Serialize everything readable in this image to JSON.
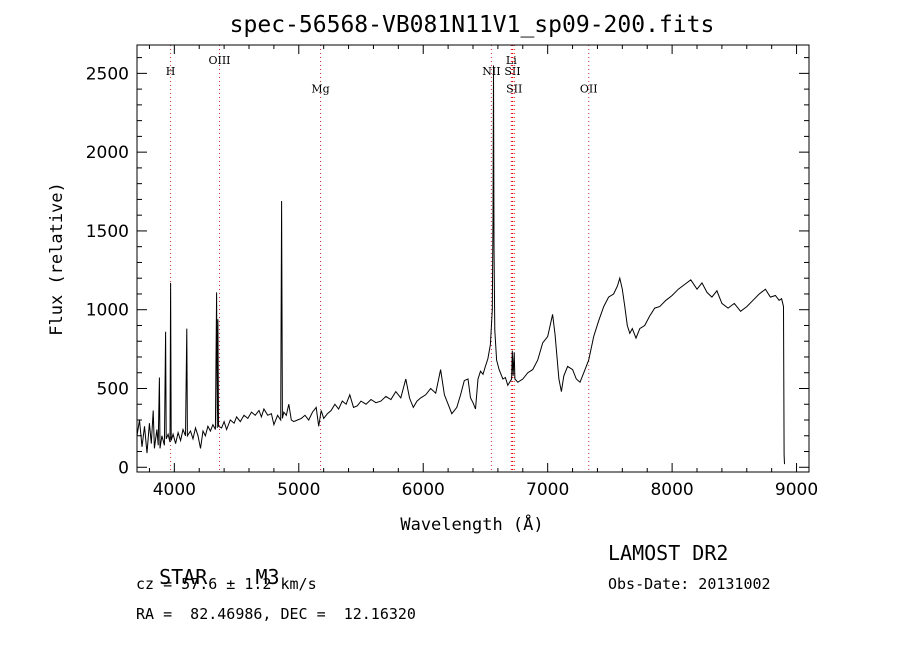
{
  "chart_data": {
    "type": "line",
    "title": "spec-56568-VB081N11V1_sp09-200.fits",
    "xlabel": "Wavelength (Å)",
    "ylabel": "Flux (relative)",
    "xlim": [
      3700,
      9100
    ],
    "ylim": [
      -30,
      2680
    ],
    "xticks": [
      4000,
      5000,
      6000,
      7000,
      8000,
      9000
    ],
    "yticks": [
      0,
      500,
      1000,
      1500,
      2000,
      2500
    ],
    "grid": false,
    "series": [
      {
        "points": [
          [
            3700,
            200
          ],
          [
            3720,
            300
          ],
          [
            3740,
            130
          ],
          [
            3760,
            260
          ],
          [
            3780,
            90
          ],
          [
            3800,
            280
          ],
          [
            3815,
            150
          ],
          [
            3830,
            360
          ],
          [
            3840,
            120
          ],
          [
            3860,
            240
          ],
          [
            3870,
            140
          ],
          [
            3880,
            570
          ],
          [
            3885,
            120
          ],
          [
            3900,
            200
          ],
          [
            3920,
            140
          ],
          [
            3930,
            860
          ],
          [
            3935,
            180
          ],
          [
            3950,
            210
          ],
          [
            3965,
            160
          ],
          [
            3970,
            1170
          ],
          [
            3975,
            170
          ],
          [
            3990,
            210
          ],
          [
            4010,
            150
          ],
          [
            4030,
            220
          ],
          [
            4050,
            170
          ],
          [
            4070,
            240
          ],
          [
            4090,
            200
          ],
          [
            4100,
            880
          ],
          [
            4105,
            200
          ],
          [
            4130,
            230
          ],
          [
            4150,
            180
          ],
          [
            4170,
            250
          ],
          [
            4190,
            200
          ],
          [
            4210,
            120
          ],
          [
            4230,
            230
          ],
          [
            4250,
            200
          ],
          [
            4270,
            260
          ],
          [
            4290,
            230
          ],
          [
            4310,
            270
          ],
          [
            4330,
            240
          ],
          [
            4340,
            1110
          ],
          [
            4345,
            250
          ],
          [
            4350,
            940
          ],
          [
            4355,
            260
          ],
          [
            4380,
            250
          ],
          [
            4400,
            290
          ],
          [
            4420,
            240
          ],
          [
            4450,
            300
          ],
          [
            4480,
            280
          ],
          [
            4500,
            320
          ],
          [
            4530,
            290
          ],
          [
            4560,
            330
          ],
          [
            4590,
            310
          ],
          [
            4620,
            350
          ],
          [
            4650,
            330
          ],
          [
            4680,
            360
          ],
          [
            4700,
            320
          ],
          [
            4720,
            370
          ],
          [
            4750,
            330
          ],
          [
            4780,
            340
          ],
          [
            4800,
            270
          ],
          [
            4830,
            330
          ],
          [
            4855,
            300
          ],
          [
            4862,
            1690
          ],
          [
            4868,
            310
          ],
          [
            4880,
            350
          ],
          [
            4900,
            330
          ],
          [
            4920,
            400
          ],
          [
            4940,
            300
          ],
          [
            4960,
            290
          ],
          [
            4990,
            300
          ],
          [
            5020,
            310
          ],
          [
            5050,
            330
          ],
          [
            5080,
            300
          ],
          [
            5110,
            350
          ],
          [
            5140,
            380
          ],
          [
            5160,
            260
          ],
          [
            5180,
            360
          ],
          [
            5200,
            310
          ],
          [
            5230,
            340
          ],
          [
            5260,
            360
          ],
          [
            5290,
            400
          ],
          [
            5320,
            370
          ],
          [
            5350,
            420
          ],
          [
            5380,
            400
          ],
          [
            5410,
            460
          ],
          [
            5440,
            380
          ],
          [
            5470,
            390
          ],
          [
            5500,
            420
          ],
          [
            5540,
            400
          ],
          [
            5580,
            430
          ],
          [
            5620,
            410
          ],
          [
            5660,
            420
          ],
          [
            5700,
            450
          ],
          [
            5740,
            430
          ],
          [
            5780,
            480
          ],
          [
            5820,
            440
          ],
          [
            5860,
            560
          ],
          [
            5890,
            440
          ],
          [
            5920,
            380
          ],
          [
            5950,
            420
          ],
          [
            5980,
            440
          ],
          [
            6020,
            460
          ],
          [
            6060,
            500
          ],
          [
            6100,
            470
          ],
          [
            6140,
            620
          ],
          [
            6170,
            460
          ],
          [
            6200,
            400
          ],
          [
            6230,
            340
          ],
          [
            6270,
            380
          ],
          [
            6300,
            460
          ],
          [
            6330,
            550
          ],
          [
            6360,
            560
          ],
          [
            6380,
            440
          ],
          [
            6400,
            410
          ],
          [
            6420,
            370
          ],
          [
            6440,
            560
          ],
          [
            6460,
            610
          ],
          [
            6480,
            590
          ],
          [
            6500,
            640
          ],
          [
            6520,
            690
          ],
          [
            6540,
            780
          ],
          [
            6555,
            1000
          ],
          [
            6561,
            1580
          ],
          [
            6565,
            2550
          ],
          [
            6569,
            1400
          ],
          [
            6575,
            870
          ],
          [
            6590,
            680
          ],
          [
            6610,
            620
          ],
          [
            6640,
            560
          ],
          [
            6660,
            570
          ],
          [
            6680,
            520
          ],
          [
            6710,
            560
          ],
          [
            6716,
            740
          ],
          [
            6722,
            580
          ],
          [
            6731,
            730
          ],
          [
            6737,
            560
          ],
          [
            6760,
            540
          ],
          [
            6800,
            560
          ],
          [
            6840,
            600
          ],
          [
            6880,
            620
          ],
          [
            6920,
            680
          ],
          [
            6960,
            790
          ],
          [
            7000,
            830
          ],
          [
            7040,
            970
          ],
          [
            7060,
            840
          ],
          [
            7090,
            560
          ],
          [
            7110,
            480
          ],
          [
            7130,
            580
          ],
          [
            7160,
            640
          ],
          [
            7200,
            620
          ],
          [
            7230,
            560
          ],
          [
            7260,
            540
          ],
          [
            7290,
            600
          ],
          [
            7330,
            680
          ],
          [
            7370,
            830
          ],
          [
            7410,
            930
          ],
          [
            7450,
            1020
          ],
          [
            7490,
            1080
          ],
          [
            7530,
            1100
          ],
          [
            7560,
            1150
          ],
          [
            7580,
            1200
          ],
          [
            7600,
            1130
          ],
          [
            7620,
            1020
          ],
          [
            7640,
            900
          ],
          [
            7660,
            850
          ],
          [
            7680,
            880
          ],
          [
            7710,
            820
          ],
          [
            7740,
            880
          ],
          [
            7780,
            900
          ],
          [
            7820,
            960
          ],
          [
            7860,
            1010
          ],
          [
            7900,
            1020
          ],
          [
            7950,
            1060
          ],
          [
            8000,
            1090
          ],
          [
            8050,
            1130
          ],
          [
            8100,
            1160
          ],
          [
            8150,
            1190
          ],
          [
            8200,
            1130
          ],
          [
            8240,
            1170
          ],
          [
            8280,
            1110
          ],
          [
            8320,
            1080
          ],
          [
            8360,
            1120
          ],
          [
            8400,
            1040
          ],
          [
            8450,
            1010
          ],
          [
            8500,
            1040
          ],
          [
            8550,
            990
          ],
          [
            8600,
            1020
          ],
          [
            8650,
            1060
          ],
          [
            8700,
            1100
          ],
          [
            8750,
            1130
          ],
          [
            8790,
            1080
          ],
          [
            8830,
            1090
          ],
          [
            8860,
            1060
          ],
          [
            8880,
            1070
          ],
          [
            8895,
            1020
          ],
          [
            8900,
            80
          ],
          [
            8903,
            20
          ]
        ]
      }
    ],
    "annotations": [
      {
        "label": "H",
        "x": 3970,
        "label_y": 2490,
        "color": "#cc3333"
      },
      {
        "label": "OIII",
        "x": 4363,
        "label_y": 2560,
        "color": "#cc3333"
      },
      {
        "label": "Mg",
        "x": 5175,
        "label_y": 2380,
        "color": "#cc3333"
      },
      {
        "label": "NII",
        "x": 6548,
        "label_y": 2490,
        "color": "#cc3333"
      },
      {
        "label": "Li",
        "x": 6708,
        "label_y": 2560,
        "color": "#dd0000"
      },
      {
        "label": "SII",
        "x": 6717,
        "label_y": 2490,
        "color": "#dd0000"
      },
      {
        "label": "SII",
        "x": 6731,
        "label_y": 2380,
        "color": "#dd0000"
      },
      {
        "label": "OII",
        "x": 7330,
        "label_y": 2380,
        "color": "#cc3333"
      }
    ]
  },
  "info": {
    "class_label": "STAR",
    "subclass": "M3",
    "survey": "LAMOST DR2",
    "cz": "cz = 57.6 ± 1.2 km/s",
    "obs_date": "Obs-Date: 20131002",
    "coords": "RA =  82.46986, DEC =  12.16320"
  }
}
